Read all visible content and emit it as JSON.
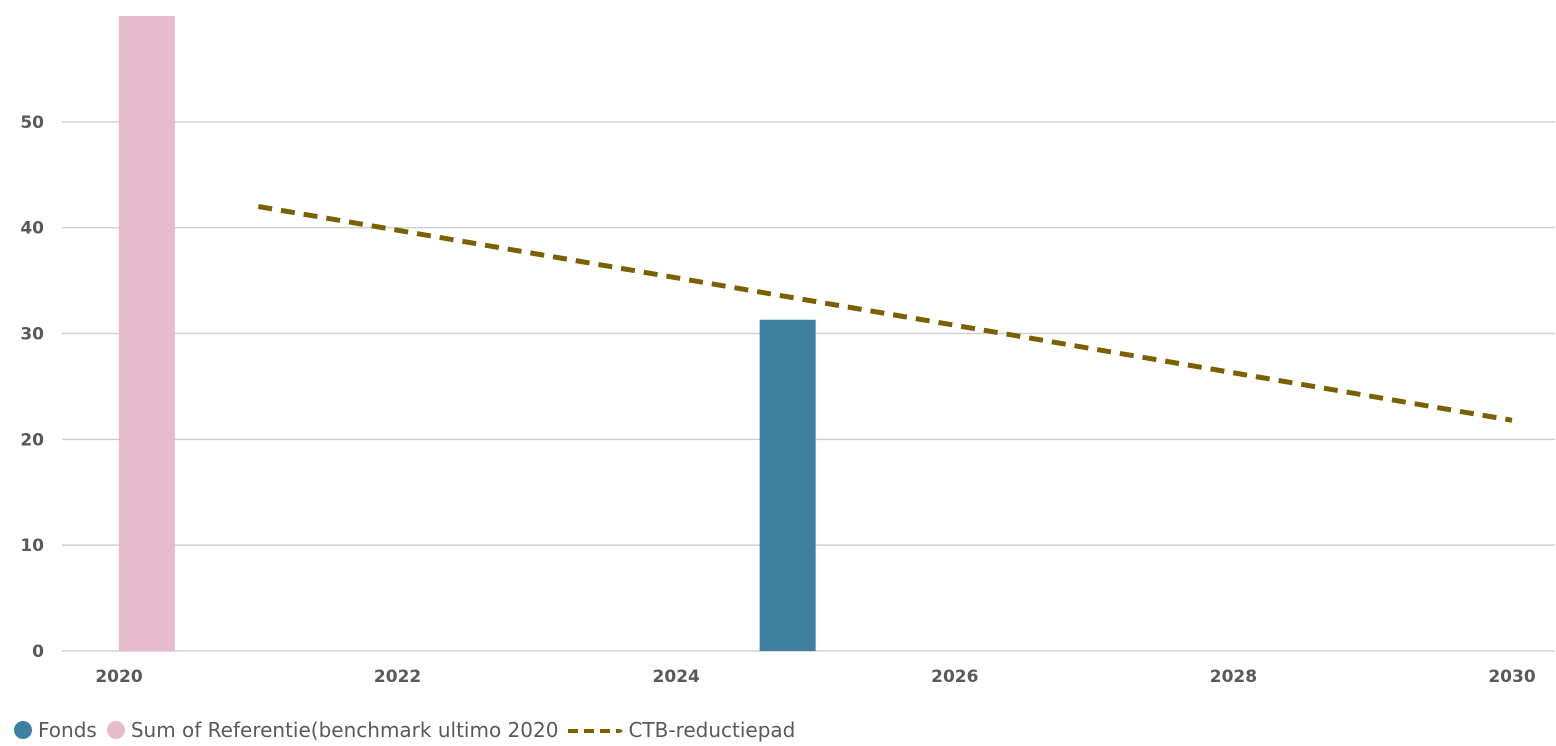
{
  "chart_data": {
    "type": "bar",
    "title": "",
    "xlabel": "",
    "ylabel": "",
    "xlim": [
      2020,
      2030
    ],
    "ylim": [
      0,
      60
    ],
    "x_ticks": [
      "2020",
      "2022",
      "2024",
      "2026",
      "2028",
      "2030"
    ],
    "y_ticks": [
      "0",
      "10",
      "20",
      "30",
      "40",
      "50"
    ],
    "grid": "horizontal",
    "legend_position": "bottom",
    "series": [
      {
        "name": "Fonds",
        "kind": "bar",
        "color": "#3f7fa0",
        "points": [
          {
            "x": 2024.8,
            "y": 31.3
          }
        ]
      },
      {
        "name": "Sum of Referentie(benchmark ultimo 2020",
        "kind": "bar",
        "color": "#e6bccd",
        "points": [
          {
            "x": 2020.2,
            "y": 60
          }
        ]
      },
      {
        "name": "CTB-reductiepad",
        "kind": "line",
        "style": "dashed",
        "color": "#7a6000",
        "points": [
          {
            "x": 2021,
            "y": 42
          },
          {
            "x": 2030,
            "y": 21.8
          }
        ]
      }
    ]
  },
  "legend": {
    "items": [
      {
        "label": "Fonds",
        "color": "#3f7fa0"
      },
      {
        "label": "Sum of Referentie(benchmark ultimo 2020",
        "color": "#e6bccd"
      },
      {
        "label": "CTB-reductiepad",
        "color": "#7a6000"
      }
    ]
  }
}
